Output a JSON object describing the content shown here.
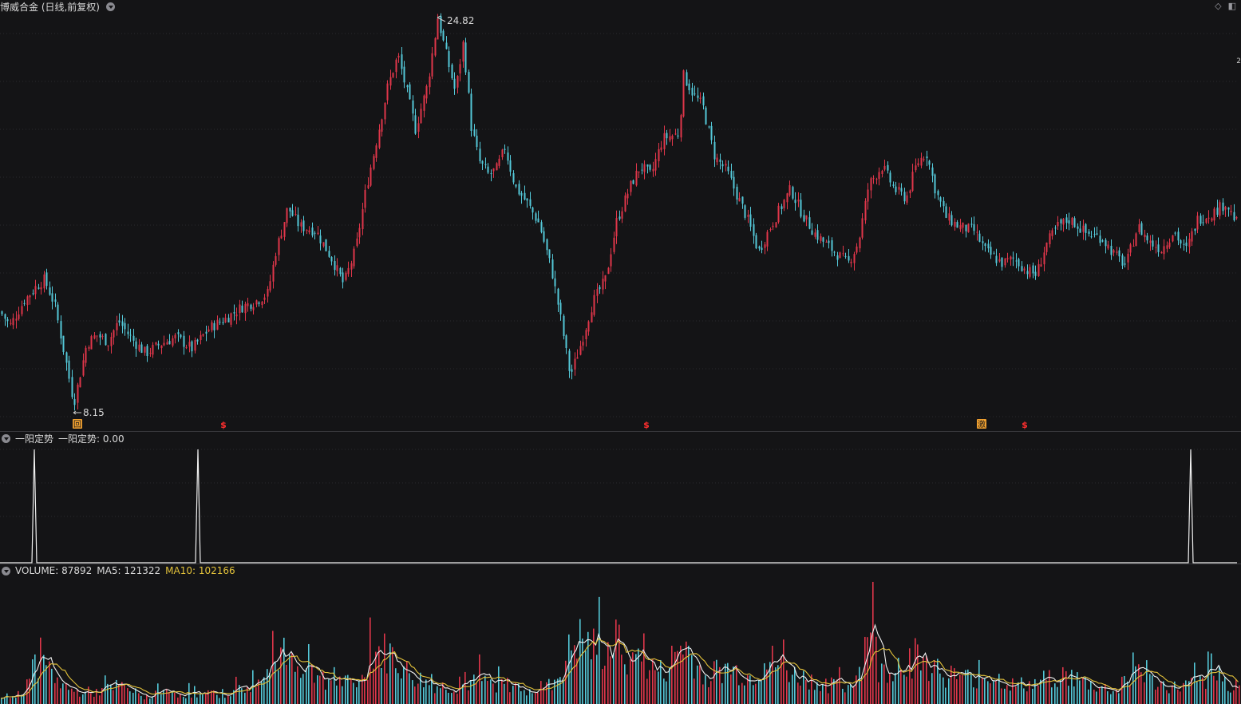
{
  "stock_title": "博威合金 (日线,前复权)",
  "price_panel": {
    "high_label": "24.82",
    "low_label": "8.15",
    "markers": [
      {
        "kind": "box",
        "text": "回"
      },
      {
        "kind": "dollar",
        "text": "$"
      },
      {
        "kind": "dollar",
        "text": "$"
      },
      {
        "kind": "box",
        "text": "激"
      },
      {
        "kind": "dollar",
        "text": "$"
      }
    ],
    "right_edge_tag": "2"
  },
  "signal_panel": {
    "name": "一阳定势",
    "value_label": "一阳定势: 0.00"
  },
  "volume_panel": {
    "volume_label": "VOLUME: 87892",
    "ma5_label": "MA5: 121322",
    "ma10_label": "MA10: 102166"
  },
  "toolbar_icons": [
    "diamond-icon",
    "panel-toggle-icon"
  ],
  "colors": {
    "up": "#e0364a",
    "down": "#54c8d8",
    "ma5": "#f0f0f0",
    "ma10": "#e3c23a",
    "background": "#141416"
  },
  "chart_data": {
    "type": "candlestick",
    "title": "博威合金 (日线,前复权)",
    "price_extremes": {
      "high": 24.82,
      "low": 8.15
    },
    "price_path": [
      [
        0,
        12.1
      ],
      [
        12,
        11.5
      ],
      [
        30,
        12.6
      ],
      [
        45,
        13.2
      ],
      [
        55,
        13.5
      ],
      [
        68,
        12.4
      ],
      [
        80,
        10.3
      ],
      [
        92,
        8.15
      ],
      [
        108,
        10.7
      ],
      [
        120,
        11.1
      ],
      [
        135,
        10.8
      ],
      [
        148,
        11.7
      ],
      [
        165,
        10.9
      ],
      [
        182,
        10.3
      ],
      [
        200,
        10.7
      ],
      [
        220,
        11.0
      ],
      [
        240,
        10.5
      ],
      [
        262,
        11.4
      ],
      [
        282,
        11.8
      ],
      [
        302,
        12.3
      ],
      [
        322,
        12.6
      ],
      [
        335,
        12.9
      ],
      [
        345,
        14.7
      ],
      [
        360,
        16.6
      ],
      [
        375,
        15.8
      ],
      [
        395,
        15.6
      ],
      [
        415,
        14.4
      ],
      [
        430,
        13.3
      ],
      [
        445,
        14.8
      ],
      [
        458,
        17.4
      ],
      [
        470,
        19.3
      ],
      [
        485,
        21.8
      ],
      [
        498,
        23.2
      ],
      [
        510,
        21.5
      ],
      [
        520,
        20.0
      ],
      [
        535,
        21.9
      ],
      [
        548,
        24.82
      ],
      [
        560,
        23.0
      ],
      [
        570,
        21.6
      ],
      [
        580,
        23.8
      ],
      [
        590,
        20.1
      ],
      [
        600,
        18.6
      ],
      [
        612,
        18.0
      ],
      [
        622,
        18.3
      ],
      [
        632,
        19.2
      ],
      [
        645,
        17.5
      ],
      [
        660,
        16.8
      ],
      [
        675,
        15.9
      ],
      [
        690,
        14.0
      ],
      [
        702,
        11.8
      ],
      [
        714,
        9.3
      ],
      [
        728,
        10.8
      ],
      [
        742,
        12.5
      ],
      [
        758,
        13.5
      ],
      [
        772,
        16.0
      ],
      [
        790,
        17.6
      ],
      [
        802,
        18.4
      ],
      [
        815,
        18.0
      ],
      [
        830,
        19.6
      ],
      [
        850,
        19.8
      ],
      [
        856,
        22.3
      ],
      [
        868,
        21.5
      ],
      [
        880,
        21.0
      ],
      [
        895,
        18.8
      ],
      [
        910,
        18.2
      ],
      [
        922,
        17.2
      ],
      [
        935,
        16.2
      ],
      [
        950,
        14.7
      ],
      [
        965,
        15.8
      ],
      [
        990,
        17.4
      ],
      [
        1005,
        16.3
      ],
      [
        1020,
        15.5
      ],
      [
        1035,
        15.0
      ],
      [
        1048,
        14.6
      ],
      [
        1062,
        14.2
      ],
      [
        1075,
        15.1
      ],
      [
        1088,
        17.6
      ],
      [
        1105,
        18.4
      ],
      [
        1120,
        17.4
      ],
      [
        1135,
        17.0
      ],
      [
        1148,
        18.5
      ],
      [
        1160,
        19.0
      ],
      [
        1172,
        17.3
      ],
      [
        1185,
        16.2
      ],
      [
        1200,
        15.8
      ],
      [
        1220,
        15.6
      ],
      [
        1235,
        14.7
      ],
      [
        1255,
        14.2
      ],
      [
        1270,
        14.4
      ],
      [
        1285,
        13.9
      ],
      [
        1298,
        13.7
      ],
      [
        1310,
        15.0
      ],
      [
        1325,
        15.8
      ],
      [
        1340,
        16.1
      ],
      [
        1360,
        15.5
      ],
      [
        1380,
        15.3
      ],
      [
        1395,
        14.6
      ],
      [
        1410,
        14.1
      ],
      [
        1425,
        15.8
      ],
      [
        1440,
        15.1
      ],
      [
        1455,
        14.8
      ],
      [
        1470,
        15.6
      ],
      [
        1485,
        14.7
      ],
      [
        1500,
        16.1
      ],
      [
        1520,
        16.4
      ],
      [
        1535,
        16.8
      ],
      [
        1550,
        15.9
      ]
    ],
    "volume_peaks": [
      [
        0,
        0.06
      ],
      [
        25,
        0.1
      ],
      [
        48,
        0.48
      ],
      [
        65,
        0.28
      ],
      [
        90,
        0.12
      ],
      [
        120,
        0.12
      ],
      [
        150,
        0.18
      ],
      [
        180,
        0.07
      ],
      [
        210,
        0.12
      ],
      [
        250,
        0.08
      ],
      [
        290,
        0.12
      ],
      [
        330,
        0.22
      ],
      [
        345,
        0.62
      ],
      [
        370,
        0.42
      ],
      [
        390,
        0.3
      ],
      [
        420,
        0.22
      ],
      [
        450,
        0.18
      ],
      [
        465,
        0.52
      ],
      [
        490,
        0.48
      ],
      [
        510,
        0.3
      ],
      [
        540,
        0.18
      ],
      [
        570,
        0.16
      ],
      [
        600,
        0.22
      ],
      [
        640,
        0.18
      ],
      [
        680,
        0.12
      ],
      [
        700,
        0.28
      ],
      [
        720,
        0.64
      ],
      [
        750,
        0.5
      ],
      [
        775,
        0.6
      ],
      [
        800,
        0.4
      ],
      [
        830,
        0.3
      ],
      [
        855,
        0.6
      ],
      [
        880,
        0.28
      ],
      [
        910,
        0.35
      ],
      [
        940,
        0.26
      ],
      [
        965,
        0.42
      ],
      [
        995,
        0.28
      ],
      [
        1030,
        0.2
      ],
      [
        1060,
        0.15
      ],
      [
        1080,
        0.4
      ],
      [
        1088,
        0.95
      ],
      [
        1100,
        0.3
      ],
      [
        1130,
        0.42
      ],
      [
        1150,
        0.48
      ],
      [
        1180,
        0.3
      ],
      [
        1210,
        0.25
      ],
      [
        1240,
        0.28
      ],
      [
        1270,
        0.18
      ],
      [
        1300,
        0.2
      ],
      [
        1320,
        0.3
      ],
      [
        1340,
        0.26
      ],
      [
        1370,
        0.18
      ],
      [
        1400,
        0.12
      ],
      [
        1420,
        0.4
      ],
      [
        1440,
        0.22
      ],
      [
        1470,
        0.16
      ],
      [
        1500,
        0.2
      ],
      [
        1520,
        0.24
      ],
      [
        1550,
        0.18
      ]
    ]
  }
}
